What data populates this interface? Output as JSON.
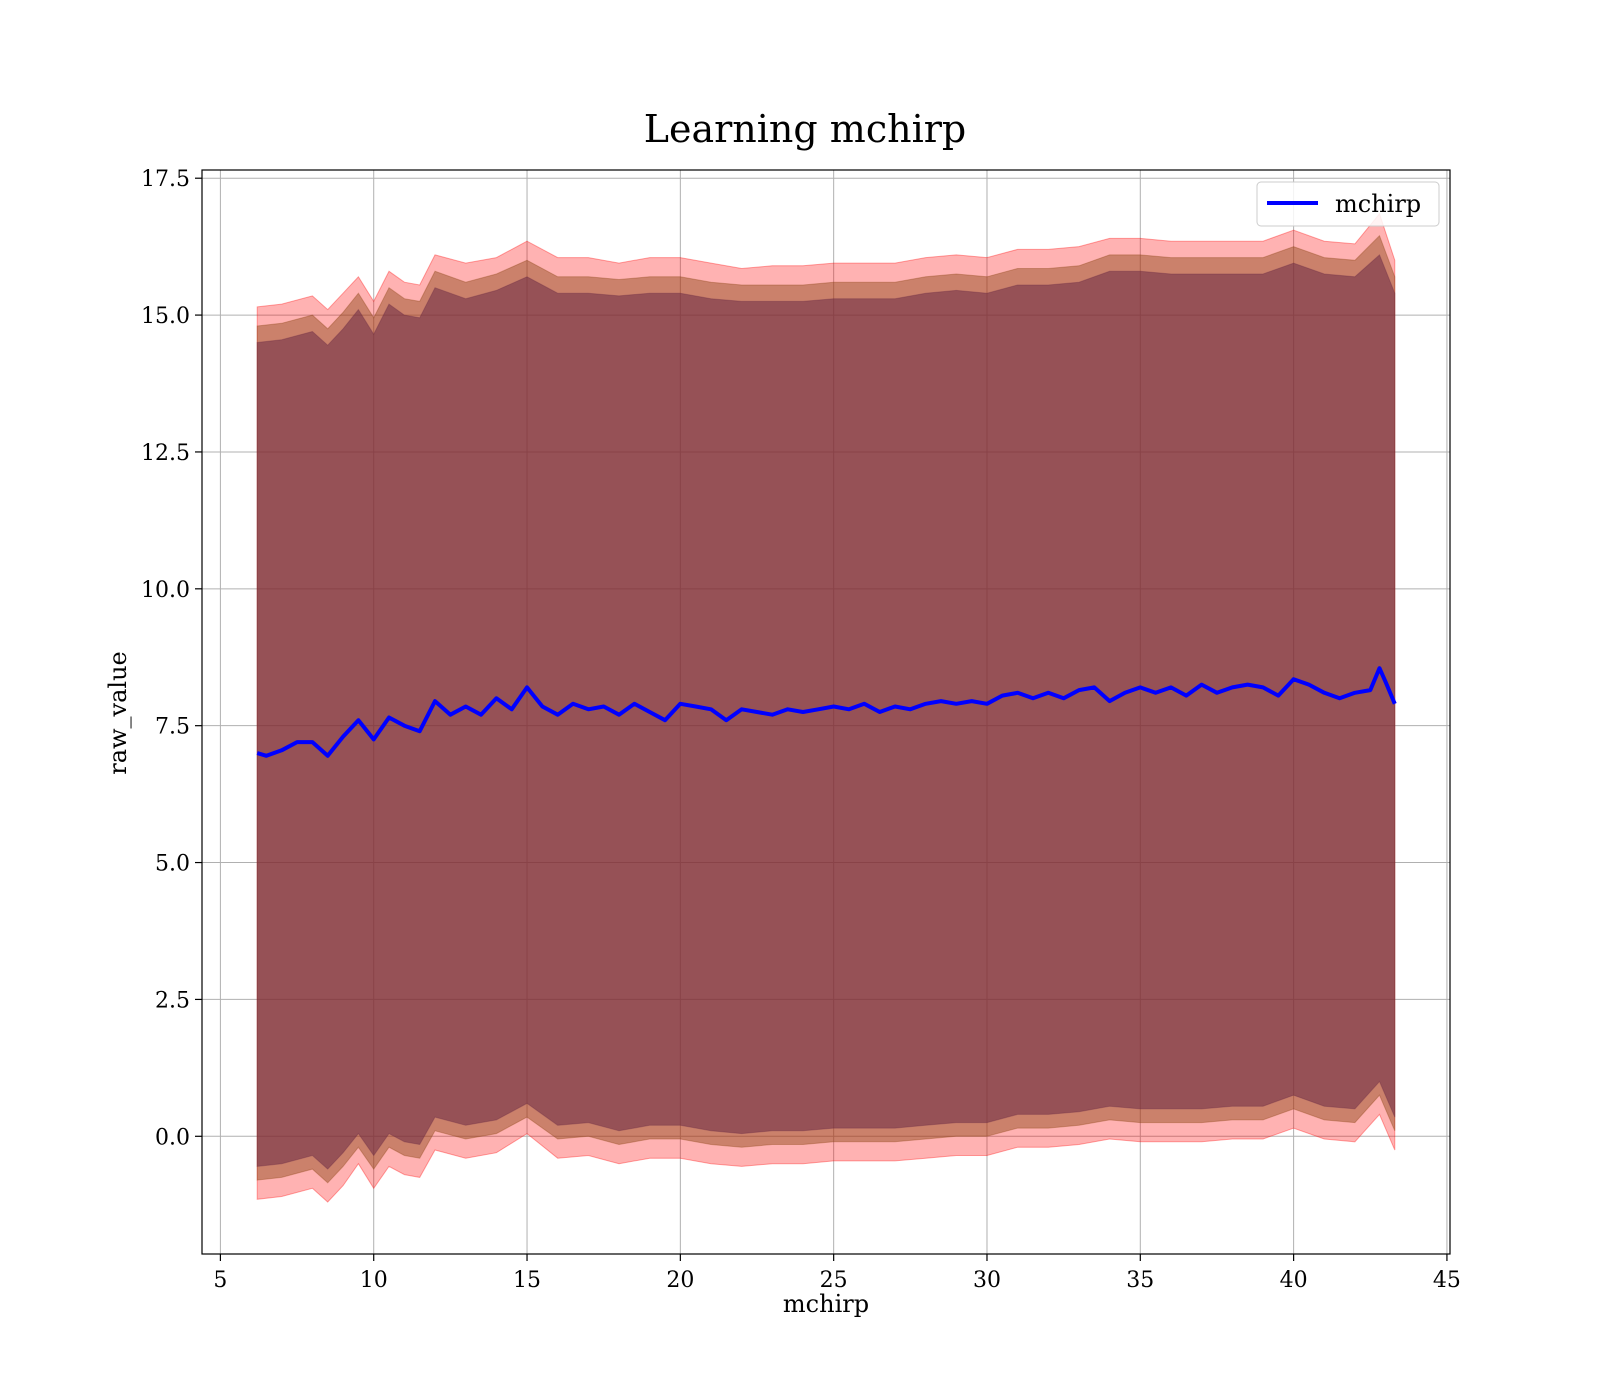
{
  "chart_data": {
    "type": "line",
    "title": "Learning mchirp",
    "xlabel": "mchirp",
    "ylabel": "raw_value",
    "xlim": [
      4.4,
      45.1
    ],
    "ylim": [
      -2.15,
      17.65
    ],
    "xticks": [
      5,
      10,
      15,
      20,
      25,
      30,
      35,
      40,
      45
    ],
    "yticks": [
      0.0,
      2.5,
      5.0,
      7.5,
      10.0,
      12.5,
      15.0,
      17.5
    ],
    "xtick_labels": [
      "5",
      "10",
      "15",
      "20",
      "25",
      "30",
      "35",
      "40",
      "45"
    ],
    "ytick_labels": [
      "0.0",
      "2.5",
      "5.0",
      "7.5",
      "10.0",
      "12.5",
      "15.0",
      "17.5"
    ],
    "grid": true,
    "legend": {
      "placement": "top-right",
      "entries": [
        "mchirp"
      ]
    },
    "series": [
      {
        "name": "mchirp",
        "color": "#0000ff",
        "x": [
          6.2,
          6.5,
          7.0,
          7.5,
          8.0,
          8.5,
          9.0,
          9.5,
          10.0,
          10.5,
          11.0,
          11.5,
          12.0,
          12.5,
          13.0,
          13.5,
          14.0,
          14.5,
          15.0,
          15.5,
          16.0,
          16.5,
          17.0,
          17.5,
          18.0,
          18.5,
          19.0,
          19.5,
          20.0,
          20.5,
          21.0,
          21.5,
          22.0,
          22.5,
          23.0,
          23.5,
          24.0,
          24.5,
          25.0,
          25.5,
          26.0,
          26.5,
          27.0,
          27.5,
          28.0,
          28.5,
          29.0,
          29.5,
          30.0,
          30.5,
          31.0,
          31.5,
          32.0,
          32.5,
          33.0,
          33.5,
          34.0,
          34.5,
          35.0,
          35.5,
          36.0,
          36.5,
          37.0,
          37.5,
          38.0,
          38.5,
          39.0,
          39.5,
          40.0,
          40.5,
          41.0,
          41.5,
          42.0,
          42.5,
          42.8,
          43.0,
          43.3
        ],
        "y": [
          7.0,
          6.95,
          7.05,
          7.2,
          7.2,
          6.95,
          7.3,
          7.6,
          7.25,
          7.65,
          7.5,
          7.4,
          7.95,
          7.7,
          7.85,
          7.7,
          8.0,
          7.8,
          8.2,
          7.85,
          7.7,
          7.9,
          7.8,
          7.85,
          7.7,
          7.9,
          7.75,
          7.6,
          7.9,
          7.85,
          7.8,
          7.6,
          7.8,
          7.75,
          7.7,
          7.8,
          7.75,
          7.8,
          7.85,
          7.8,
          7.9,
          7.75,
          7.85,
          7.8,
          7.9,
          7.95,
          7.9,
          7.95,
          7.9,
          8.05,
          8.1,
          8.0,
          8.1,
          8.0,
          8.15,
          8.2,
          7.95,
          8.1,
          8.2,
          8.1,
          8.2,
          8.05,
          8.25,
          8.1,
          8.2,
          8.25,
          8.2,
          8.05,
          8.35,
          8.25,
          8.1,
          8.0,
          8.1,
          8.15,
          8.55,
          8.3,
          7.9
        ]
      }
    ],
    "bands": [
      {
        "color": "#ff0000",
        "opacity": 0.3,
        "x": [
          6.2,
          7.0,
          8.0,
          8.5,
          9.0,
          9.5,
          10.0,
          10.5,
          11.0,
          11.5,
          12.0,
          13.0,
          14.0,
          15.0,
          16.0,
          17.0,
          18.0,
          19.0,
          20.0,
          21.0,
          22.0,
          23.0,
          24.0,
          25.0,
          26.0,
          27.0,
          28.0,
          29.0,
          30.0,
          31.0,
          32.0,
          33.0,
          34.0,
          35.0,
          36.0,
          37.0,
          38.0,
          39.0,
          40.0,
          41.0,
          42.0,
          42.8,
          43.3
        ],
        "upper": [
          15.15,
          15.2,
          15.35,
          15.1,
          15.4,
          15.7,
          15.25,
          15.8,
          15.6,
          15.55,
          16.1,
          15.95,
          16.05,
          16.35,
          16.05,
          16.05,
          15.95,
          16.05,
          16.05,
          15.95,
          15.85,
          15.9,
          15.9,
          15.95,
          15.95,
          15.95,
          16.05,
          16.1,
          16.05,
          16.2,
          16.2,
          16.25,
          16.4,
          16.4,
          16.35,
          16.35,
          16.35,
          16.35,
          16.55,
          16.35,
          16.3,
          16.85,
          16.0
        ],
        "lower": [
          -1.15,
          -1.1,
          -0.95,
          -1.2,
          -0.9,
          -0.5,
          -0.95,
          -0.55,
          -0.7,
          -0.75,
          -0.25,
          -0.4,
          -0.3,
          0.05,
          -0.4,
          -0.35,
          -0.5,
          -0.4,
          -0.4,
          -0.5,
          -0.55,
          -0.5,
          -0.5,
          -0.45,
          -0.45,
          -0.45,
          -0.4,
          -0.35,
          -0.35,
          -0.2,
          -0.2,
          -0.15,
          -0.05,
          -0.1,
          -0.1,
          -0.1,
          -0.05,
          -0.05,
          0.15,
          -0.05,
          -0.1,
          0.4,
          -0.25
        ]
      },
      {
        "color": "#8b4513",
        "opacity": 0.45,
        "x": [
          6.2,
          7.0,
          8.0,
          8.5,
          9.0,
          9.5,
          10.0,
          10.5,
          11.0,
          11.5,
          12.0,
          13.0,
          14.0,
          15.0,
          16.0,
          17.0,
          18.0,
          19.0,
          20.0,
          21.0,
          22.0,
          23.0,
          24.0,
          25.0,
          26.0,
          27.0,
          28.0,
          29.0,
          30.0,
          31.0,
          32.0,
          33.0,
          34.0,
          35.0,
          36.0,
          37.0,
          38.0,
          39.0,
          40.0,
          41.0,
          42.0,
          42.8,
          43.3
        ],
        "upper": [
          14.8,
          14.85,
          15.0,
          14.75,
          15.05,
          15.4,
          14.95,
          15.5,
          15.3,
          15.25,
          15.8,
          15.6,
          15.75,
          16.0,
          15.7,
          15.7,
          15.65,
          15.7,
          15.7,
          15.6,
          15.55,
          15.55,
          15.55,
          15.6,
          15.6,
          15.6,
          15.7,
          15.75,
          15.7,
          15.85,
          15.85,
          15.9,
          16.1,
          16.1,
          16.05,
          16.05,
          16.05,
          16.05,
          16.25,
          16.05,
          16.0,
          16.45,
          15.7
        ],
        "lower": [
          -0.8,
          -0.75,
          -0.6,
          -0.85,
          -0.55,
          -0.2,
          -0.6,
          -0.2,
          -0.35,
          -0.4,
          0.1,
          -0.05,
          0.05,
          0.35,
          -0.05,
          0.0,
          -0.15,
          -0.05,
          -0.05,
          -0.15,
          -0.2,
          -0.15,
          -0.15,
          -0.1,
          -0.1,
          -0.1,
          -0.05,
          0.0,
          0.0,
          0.15,
          0.15,
          0.2,
          0.3,
          0.25,
          0.25,
          0.25,
          0.3,
          0.3,
          0.5,
          0.3,
          0.25,
          0.75,
          0.1
        ]
      },
      {
        "color": "#6b2a45",
        "opacity": 0.55,
        "x": [
          6.2,
          7.0,
          8.0,
          8.5,
          9.0,
          9.5,
          10.0,
          10.5,
          11.0,
          11.5,
          12.0,
          13.0,
          14.0,
          15.0,
          16.0,
          17.0,
          18.0,
          19.0,
          20.0,
          21.0,
          22.0,
          23.0,
          24.0,
          25.0,
          26.0,
          27.0,
          28.0,
          29.0,
          30.0,
          31.0,
          32.0,
          33.0,
          34.0,
          35.0,
          36.0,
          37.0,
          38.0,
          39.0,
          40.0,
          41.0,
          42.0,
          42.8,
          43.3
        ],
        "upper": [
          14.5,
          14.55,
          14.7,
          14.45,
          14.75,
          15.1,
          14.65,
          15.2,
          15.0,
          14.95,
          15.5,
          15.3,
          15.45,
          15.7,
          15.4,
          15.4,
          15.35,
          15.4,
          15.4,
          15.3,
          15.25,
          15.25,
          15.25,
          15.3,
          15.3,
          15.3,
          15.4,
          15.45,
          15.4,
          15.55,
          15.55,
          15.6,
          15.8,
          15.8,
          15.75,
          15.75,
          15.75,
          15.75,
          15.95,
          15.75,
          15.7,
          16.1,
          15.4
        ],
        "lower": [
          -0.55,
          -0.5,
          -0.35,
          -0.6,
          -0.3,
          0.05,
          -0.35,
          0.05,
          -0.1,
          -0.15,
          0.35,
          0.2,
          0.3,
          0.6,
          0.2,
          0.25,
          0.1,
          0.2,
          0.2,
          0.1,
          0.05,
          0.1,
          0.1,
          0.15,
          0.15,
          0.15,
          0.2,
          0.25,
          0.25,
          0.4,
          0.4,
          0.45,
          0.55,
          0.5,
          0.5,
          0.5,
          0.55,
          0.55,
          0.75,
          0.55,
          0.5,
          1.0,
          0.35
        ]
      }
    ]
  }
}
